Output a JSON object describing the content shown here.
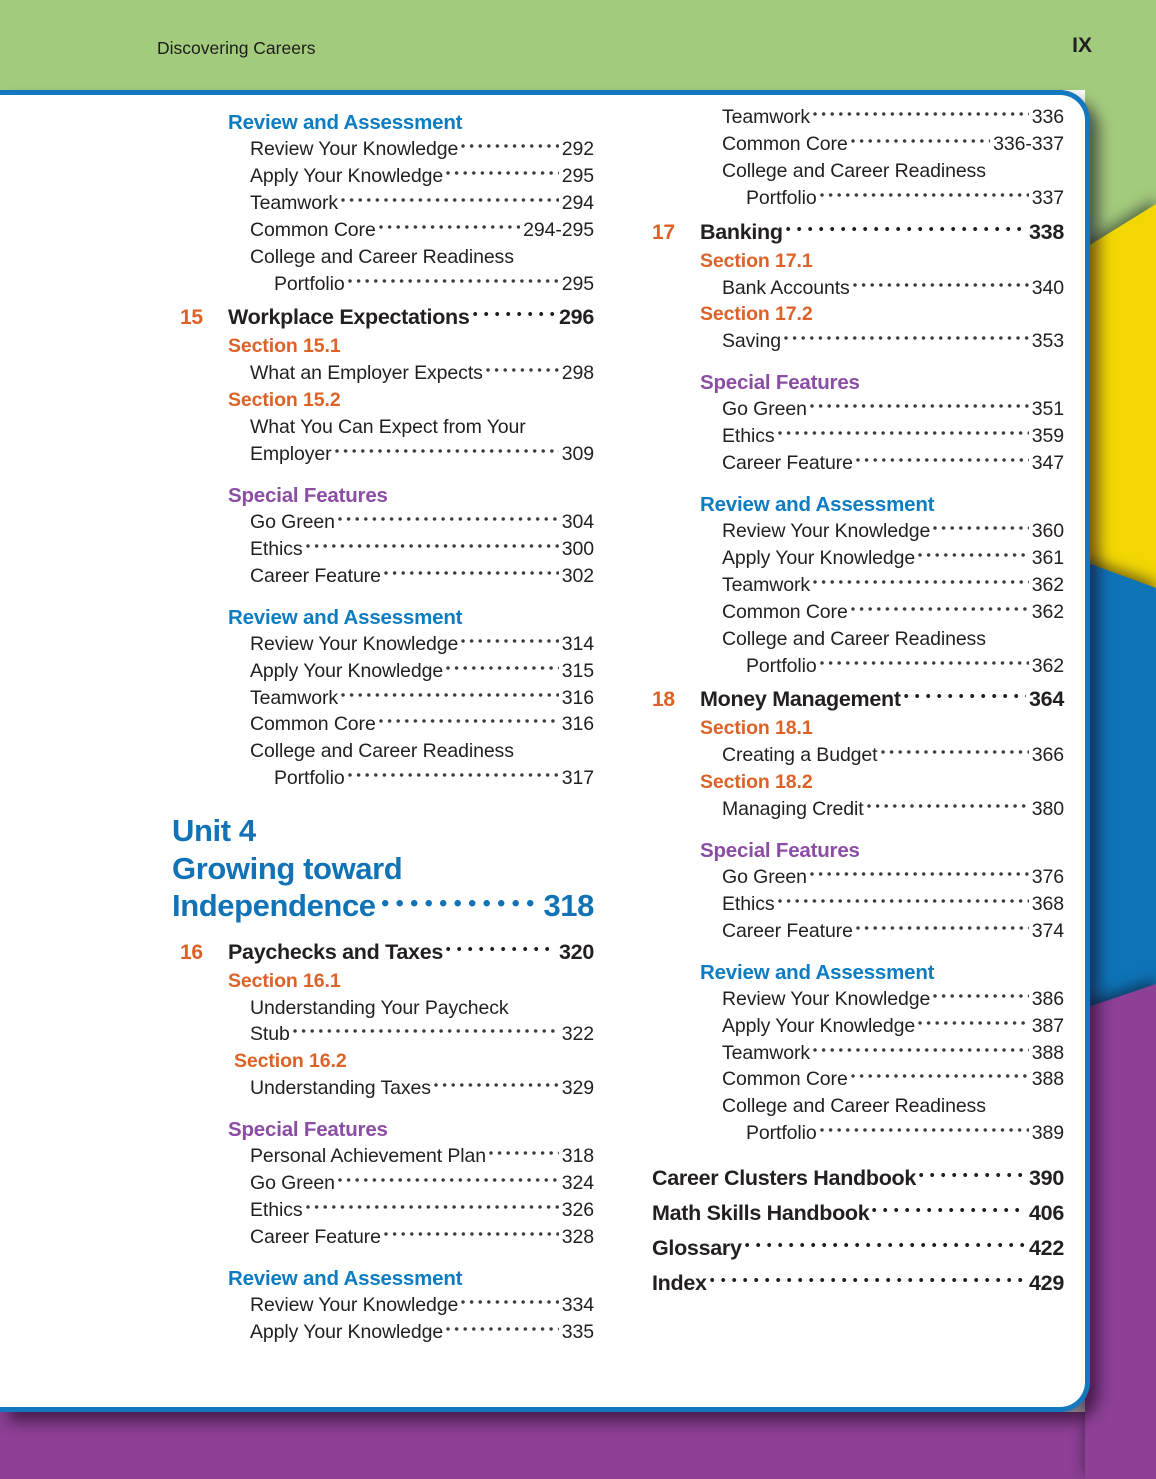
{
  "header": {
    "left": "Discovering Careers",
    "right": "IX"
  },
  "colors": {
    "header_green": "#a3cb7d",
    "card_border_blue": "#1478be",
    "review_blue": "#0d7cc1",
    "unit_blue": "#1173b5",
    "section_orange": "#dd6227",
    "features_purple": "#8b4ea4",
    "text_black": "#231f20",
    "dot_gray": "#3b3b3b",
    "rail_yellow": "#f2d704",
    "rail_blue": "#0e74b8",
    "rail_purple": "#8d4095"
  },
  "columns": {
    "left": [
      {
        "type": "subhead",
        "style": "review",
        "text": "Review and Assessment"
      },
      {
        "type": "entry",
        "label": "Review Your Knowledge",
        "page": "292"
      },
      {
        "type": "entry",
        "label": "Apply Your Knowledge",
        "page": "295"
      },
      {
        "type": "entry",
        "label": "Teamwork",
        "page": "294"
      },
      {
        "type": "entry",
        "label": "Common Core",
        "page": "294-295"
      },
      {
        "type": "entry2",
        "line1": "College and Career Readiness",
        "label": "Portfolio",
        "page": "295",
        "hang": true
      },
      {
        "type": "chapter",
        "num": "15",
        "title": "Workplace Expectations",
        "page": "296"
      },
      {
        "type": "section",
        "text": "Section 15.1"
      },
      {
        "type": "entry",
        "label": "What an Employer Expects",
        "page": "298"
      },
      {
        "type": "section",
        "text": "Section 15.2"
      },
      {
        "type": "entry2",
        "line1": "What You Can Expect from Your",
        "label": "Employer",
        "page": "309",
        "hang": false
      },
      {
        "type": "subhead",
        "style": "features",
        "text": "Special Features"
      },
      {
        "type": "entry",
        "label": "Go Green",
        "page": "304"
      },
      {
        "type": "entry",
        "label": "Ethics",
        "page": "300"
      },
      {
        "type": "entry",
        "label": "Career Feature",
        "page": "302"
      },
      {
        "type": "subhead",
        "style": "review",
        "text": "Review and Assessment"
      },
      {
        "type": "entry",
        "label": "Review Your Knowledge",
        "page": "314"
      },
      {
        "type": "entry",
        "label": "Apply Your Knowledge",
        "page": "315"
      },
      {
        "type": "entry",
        "label": "Teamwork",
        "page": "316"
      },
      {
        "type": "entry",
        "label": "Common Core",
        "page": "316"
      },
      {
        "type": "entry2",
        "line1": "College and Career Readiness",
        "label": "Portfolio",
        "page": "317",
        "hang": true
      },
      {
        "type": "unit",
        "lines": [
          "Unit 4",
          "Growing toward"
        ],
        "label": "Independence",
        "page": "318"
      },
      {
        "type": "chapter",
        "num": "16",
        "title": "Paychecks and Taxes",
        "page": "320"
      },
      {
        "type": "section",
        "text": "Section 16.1"
      },
      {
        "type": "entry2",
        "line1": "Understanding Your Paycheck",
        "label": "Stub",
        "page": "322",
        "hang": false
      },
      {
        "type": "section",
        "text": "Section 16.2",
        "indent": true
      },
      {
        "type": "entry",
        "label": "Understanding Taxes",
        "page": "329"
      },
      {
        "type": "subhead",
        "style": "features",
        "text": "Special Features"
      },
      {
        "type": "entry",
        "label": "Personal Achievement Plan",
        "page": "318"
      },
      {
        "type": "entry",
        "label": "Go Green",
        "page": "324"
      },
      {
        "type": "entry",
        "label": "Ethics",
        "page": "326"
      },
      {
        "type": "entry",
        "label": "Career Feature",
        "page": "328"
      },
      {
        "type": "subhead",
        "style": "review",
        "text": "Review and Assessment"
      },
      {
        "type": "entry",
        "label": "Review Your Knowledge",
        "page": "334"
      },
      {
        "type": "entry",
        "label": "Apply Your Knowledge",
        "page": "335"
      }
    ],
    "right": [
      {
        "type": "entry",
        "label": "Teamwork",
        "page": "336"
      },
      {
        "type": "entry",
        "label": "Common Core",
        "page": "336-337"
      },
      {
        "type": "entry2",
        "line1": "College and Career Readiness",
        "label": "Portfolio",
        "page": "337",
        "hang": true
      },
      {
        "type": "chapter",
        "num": "17",
        "title": "Banking",
        "page": "338"
      },
      {
        "type": "section",
        "text": "Section 17.1"
      },
      {
        "type": "entry",
        "label": "Bank Accounts",
        "page": "340"
      },
      {
        "type": "section",
        "text": "Section 17.2"
      },
      {
        "type": "entry",
        "label": "Saving",
        "page": "353"
      },
      {
        "type": "subhead",
        "style": "features",
        "text": "Special Features"
      },
      {
        "type": "entry",
        "label": "Go Green",
        "page": "351"
      },
      {
        "type": "entry",
        "label": "Ethics",
        "page": "359"
      },
      {
        "type": "entry",
        "label": "Career Feature",
        "page": "347"
      },
      {
        "type": "subhead",
        "style": "review",
        "text": "Review and Assessment"
      },
      {
        "type": "entry",
        "label": "Review Your Knowledge",
        "page": "360"
      },
      {
        "type": "entry",
        "label": "Apply Your Knowledge",
        "page": "361"
      },
      {
        "type": "entry",
        "label": "Teamwork",
        "page": "362"
      },
      {
        "type": "entry",
        "label": "Common Core",
        "page": "362"
      },
      {
        "type": "entry2",
        "line1": "College and Career Readiness",
        "label": "Portfolio",
        "page": "362",
        "hang": true
      },
      {
        "type": "chapter",
        "num": "18",
        "title": "Money Management",
        "page": "364"
      },
      {
        "type": "section",
        "text": "Section 18.1"
      },
      {
        "type": "entry",
        "label": "Creating a Budget",
        "page": "366"
      },
      {
        "type": "section",
        "text": "Section 18.2"
      },
      {
        "type": "entry",
        "label": "Managing Credit",
        "page": "380"
      },
      {
        "type": "subhead",
        "style": "features",
        "text": "Special Features"
      },
      {
        "type": "entry",
        "label": "Go Green",
        "page": "376"
      },
      {
        "type": "entry",
        "label": "Ethics",
        "page": "368"
      },
      {
        "type": "entry",
        "label": "Career Feature",
        "page": "374"
      },
      {
        "type": "subhead",
        "style": "review",
        "text": "Review and Assessment"
      },
      {
        "type": "entry",
        "label": "Review Your Knowledge",
        "page": "386"
      },
      {
        "type": "entry",
        "label": "Apply Your Knowledge",
        "page": "387"
      },
      {
        "type": "entry",
        "label": "Teamwork",
        "page": "388"
      },
      {
        "type": "entry",
        "label": "Common Core",
        "page": "388"
      },
      {
        "type": "entry2",
        "line1": "College and Career Readiness",
        "label": "Portfolio",
        "page": "389",
        "hang": true
      },
      {
        "type": "backmatter",
        "label": "Career Clusters Handbook",
        "page": "390"
      },
      {
        "type": "backmatter",
        "label": "Math Skills Handbook",
        "page": "406"
      },
      {
        "type": "backmatter",
        "label": "Glossary",
        "page": "422"
      },
      {
        "type": "backmatter",
        "label": "Index",
        "page": "429"
      }
    ]
  }
}
